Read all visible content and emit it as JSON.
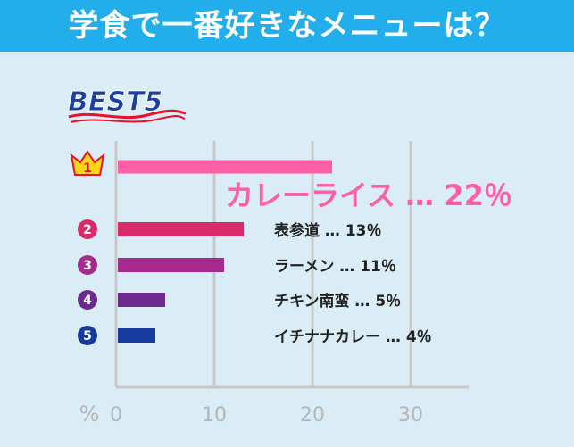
{
  "title": "学食で一番好きなメニューは？",
  "badge": "BEST5",
  "chart_data": {
    "type": "bar",
    "orientation": "horizontal",
    "unit_label": "%",
    "xlim": [
      0,
      35
    ],
    "x_ticks": [
      0,
      10,
      20,
      30
    ],
    "grid": true,
    "categories": [
      "カレーライス",
      "表参道",
      "ラーメン",
      "チキン南蛮",
      "イチナナカレー"
    ],
    "values": [
      22,
      13,
      11,
      5,
      4
    ],
    "ranks": [
      "1",
      "2",
      "3",
      "4",
      "5"
    ],
    "separator": "…",
    "value_suffix": "％",
    "colors": [
      "#fe5ea7",
      "#db2a6c",
      "#a72a8e",
      "#6a2a8e",
      "#173b9f"
    ]
  }
}
